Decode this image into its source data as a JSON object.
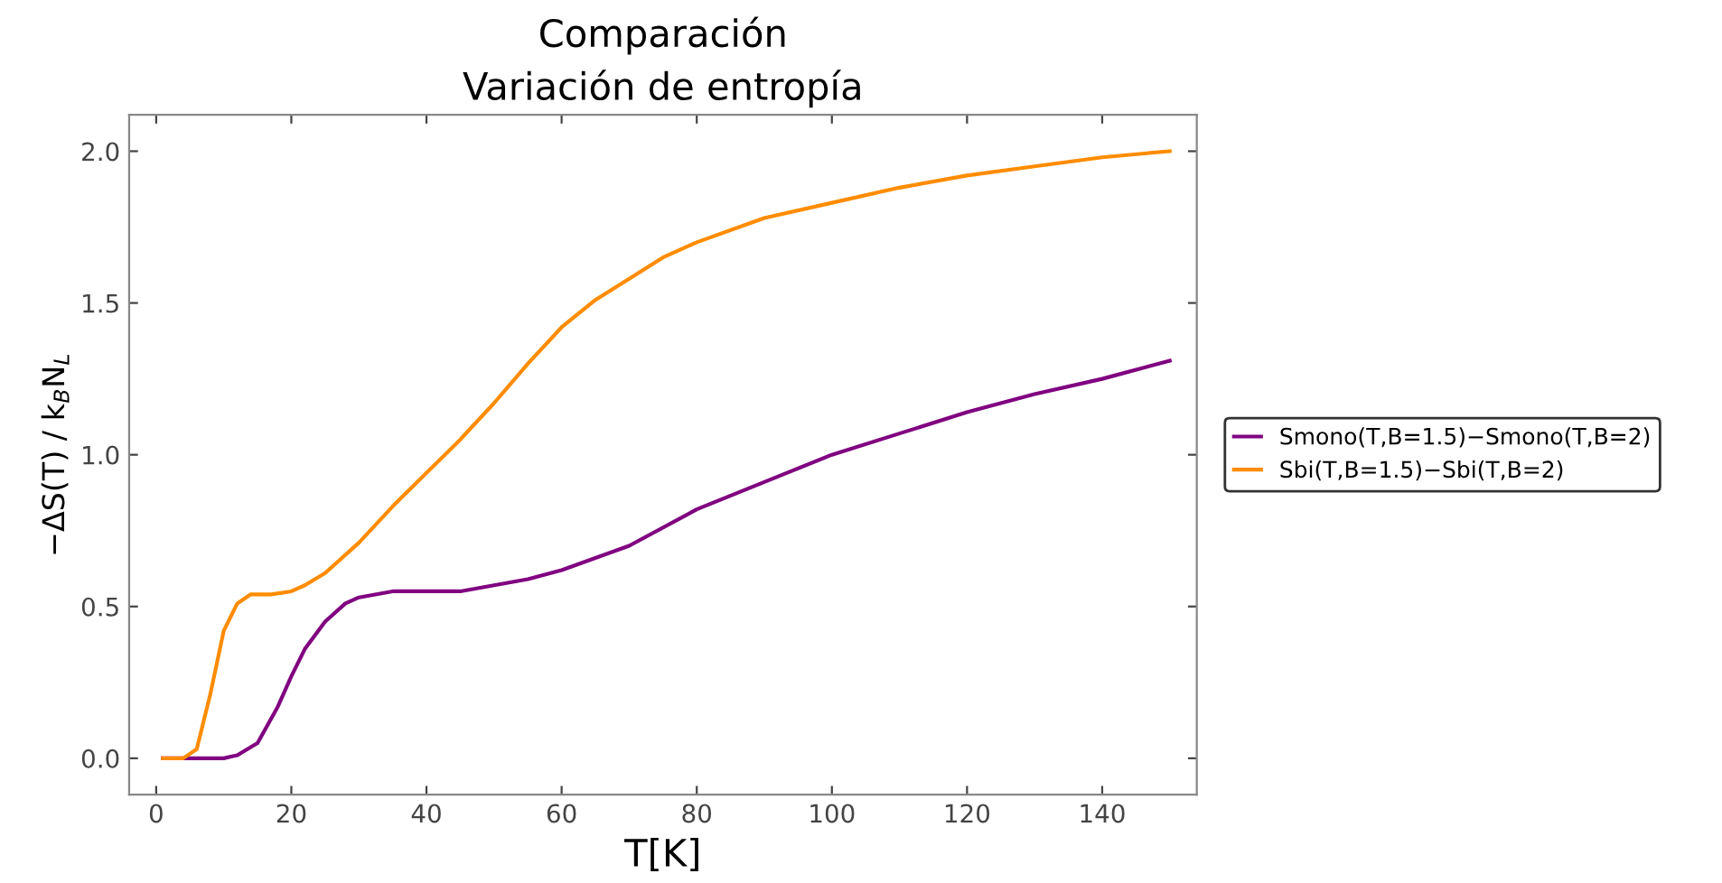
{
  "chart_data": {
    "type": "line",
    "title": "Comparación\nVariación de entropía",
    "xlabel": "T[K]",
    "ylabel": "−ΔS(T) / k$_{B}$N$_{L}$",
    "xlim": [
      -4,
      154
    ],
    "ylim": [
      -0.12,
      2.12
    ],
    "xticks": [
      0,
      20,
      40,
      60,
      80,
      100,
      120,
      140
    ],
    "yticks": [
      {
        "value": 0,
        "label": "0.0"
      },
      {
        "value": 0.5,
        "label": "0.5"
      },
      {
        "value": 1,
        "label": "1.0"
      },
      {
        "value": 1.5,
        "label": "1.5"
      },
      {
        "value": 2,
        "label": "2.0"
      }
    ],
    "grid": false,
    "legend": "right",
    "marker": "none",
    "line_style": "solid",
    "series": [
      {
        "name": "Smono(T,B=1.5)−Smono(T,B=2)",
        "color": "#800080",
        "x": [
          1,
          5,
          10,
          12,
          15,
          18,
          20,
          22,
          25,
          28,
          30,
          35,
          40,
          45,
          50,
          55,
          60,
          70,
          80,
          90,
          100,
          110,
          120,
          130,
          140,
          150
        ],
        "values": [
          0,
          0,
          0,
          0.01,
          0.05,
          0.17,
          0.27,
          0.36,
          0.45,
          0.51,
          0.53,
          0.55,
          0.55,
          0.55,
          0.57,
          0.59,
          0.62,
          0.7,
          0.82,
          0.91,
          1.0,
          1.07,
          1.14,
          1.2,
          1.25,
          1.31
        ]
      },
      {
        "name": "Sbi(T,B=1.5)−Sbi(T,B=2)",
        "color": "#ff8c00",
        "x": [
          1,
          4,
          6,
          8,
          10,
          12,
          14,
          17,
          20,
          22,
          25,
          30,
          35,
          40,
          45,
          50,
          55,
          60,
          65,
          70,
          75,
          80,
          90,
          100,
          110,
          120,
          130,
          140,
          150
        ],
        "values": [
          0,
          0,
          0.03,
          0.21,
          0.42,
          0.51,
          0.54,
          0.54,
          0.55,
          0.57,
          0.61,
          0.71,
          0.83,
          0.94,
          1.05,
          1.17,
          1.3,
          1.42,
          1.51,
          1.58,
          1.65,
          1.7,
          1.78,
          1.83,
          1.88,
          1.92,
          1.95,
          1.98,
          2.0
        ]
      }
    ]
  }
}
